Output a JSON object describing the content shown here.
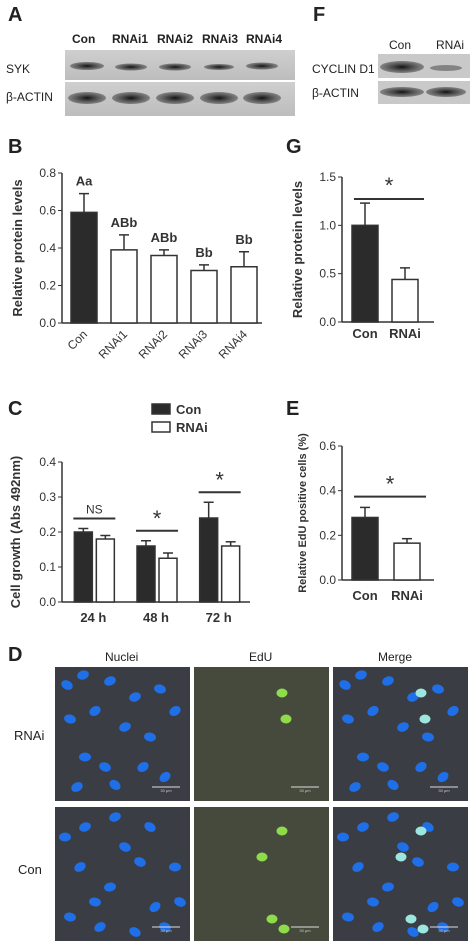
{
  "panels": {
    "A": {
      "label": "A",
      "lanes": [
        "Con",
        "RNAi1",
        "RNAi2",
        "RNAi3",
        "RNAi4"
      ],
      "rows": [
        "SYK",
        "β-ACTIN"
      ]
    },
    "F": {
      "label": "F",
      "lanes": [
        "Con",
        "RNAi"
      ],
      "rows": [
        "CYCLIN D1",
        "β-ACTIN"
      ]
    },
    "B": {
      "label": "B"
    },
    "G": {
      "label": "G"
    },
    "C": {
      "label": "C"
    },
    "E": {
      "label": "E"
    },
    "D": {
      "label": "D",
      "columns": [
        "Nuclei",
        "EdU",
        "Merge"
      ],
      "rows": [
        "RNAi",
        "Con"
      ],
      "scale": "30 μm"
    }
  },
  "chart_data": [
    {
      "id": "B",
      "type": "bar",
      "categories": [
        "Con",
        "RNAi1",
        "RNAi2",
        "RNAi3",
        "RNAi4"
      ],
      "values": [
        0.59,
        0.39,
        0.36,
        0.28,
        0.3
      ],
      "errors": [
        0.1,
        0.08,
        0.03,
        0.03,
        0.08
      ],
      "annotations": [
        "Aa",
        "ABb",
        "ABb",
        "Bb",
        "Bb"
      ],
      "ylabel": "Relative protein levels",
      "ylim": [
        0,
        0.8
      ],
      "yticks": [
        "0.0",
        "0.2",
        "0.4",
        "0.6",
        "0.8"
      ],
      "colors": [
        "#2b2b2b",
        "#ffffff",
        "#ffffff",
        "#ffffff",
        "#ffffff"
      ]
    },
    {
      "id": "G",
      "type": "bar",
      "categories": [
        "Con",
        "RNAi"
      ],
      "values": [
        1.0,
        0.44
      ],
      "errors": [
        0.23,
        0.12
      ],
      "significance": "*",
      "ylabel": "Relative protein levels",
      "ylim": [
        0,
        1.5
      ],
      "yticks": [
        "0.0",
        "0.5",
        "1.0",
        "1.5"
      ],
      "colors": [
        "#2b2b2b",
        "#ffffff"
      ]
    },
    {
      "id": "C",
      "type": "bar",
      "categories": [
        "24 h",
        "48 h",
        "72 h"
      ],
      "series": [
        {
          "name": "Con",
          "values": [
            0.2,
            0.16,
            0.24
          ],
          "errors": [
            0.01,
            0.015,
            0.045
          ],
          "color": "#2b2b2b"
        },
        {
          "name": "RNAi",
          "values": [
            0.18,
            0.125,
            0.16
          ],
          "errors": [
            0.01,
            0.015,
            0.012
          ],
          "color": "#ffffff"
        }
      ],
      "significance": [
        "NS",
        "*",
        "*"
      ],
      "ylabel": "Cell growth (Abs 492nm)",
      "ylim": [
        0,
        0.4
      ],
      "yticks": [
        "0.0",
        "0.1",
        "0.2",
        "0.3",
        "0.4"
      ],
      "legend": "top"
    },
    {
      "id": "E",
      "type": "bar",
      "categories": [
        "Con",
        "RNAi"
      ],
      "values": [
        0.28,
        0.165
      ],
      "errors": [
        0.045,
        0.02
      ],
      "significance": "*",
      "ylabel": "Relative EdU positive cells (%)",
      "ylim": [
        0,
        0.6
      ],
      "yticks": [
        "0.0",
        "0.2",
        "0.4",
        "0.6"
      ],
      "colors": [
        "#2b2b2b",
        "#ffffff"
      ]
    }
  ]
}
